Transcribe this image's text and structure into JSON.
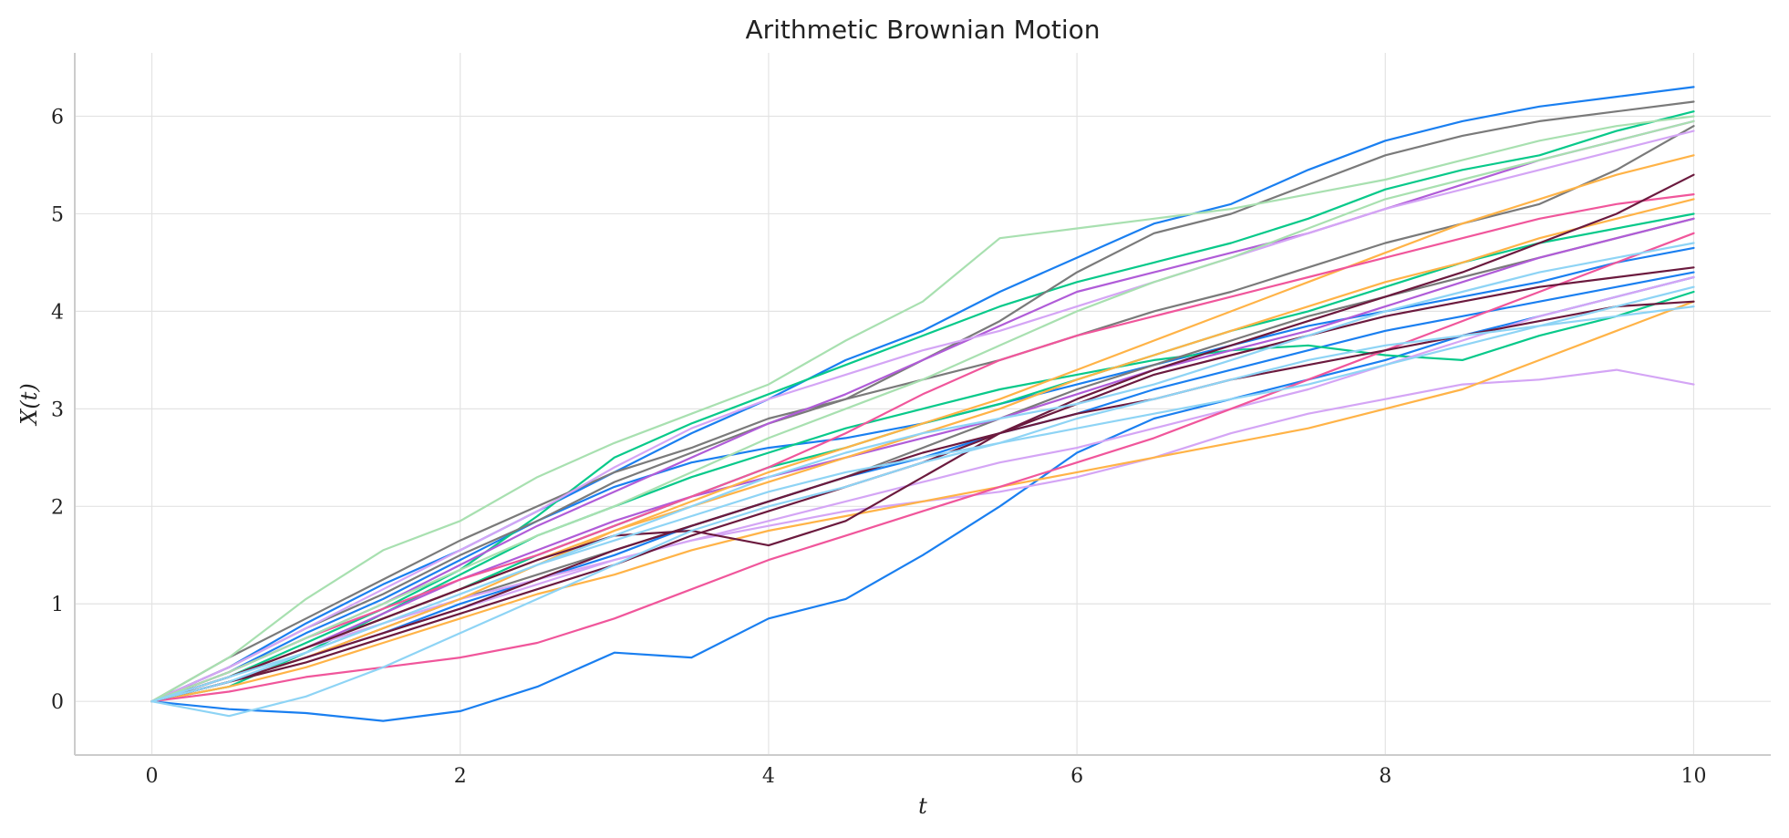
{
  "chart_data": {
    "type": "line",
    "title": "Arithmetic Brownian Motion",
    "xlabel": "t",
    "ylabel": "X(t)",
    "xlim": [
      -0.5,
      10.5
    ],
    "ylim": [
      -0.55,
      6.65
    ],
    "x_ticks": [
      0,
      2,
      4,
      6,
      8,
      10
    ],
    "x_tick_labels": [
      "0",
      "2",
      "4",
      "6",
      "8",
      "10"
    ],
    "y_ticks": [
      0,
      1,
      2,
      3,
      4,
      5,
      6
    ],
    "y_tick_labels": [
      "0",
      "1",
      "2",
      "3",
      "4",
      "5",
      "6"
    ],
    "grid": true,
    "legend": "none",
    "x": [
      0,
      0.5,
      1,
      1.5,
      2,
      2.5,
      3,
      3.5,
      4,
      4.5,
      5,
      5.5,
      6,
      6.5,
      7,
      7.5,
      8,
      8.5,
      9,
      9.5,
      10
    ],
    "series": [
      {
        "color": "#1a7ff0",
        "values": [
          0,
          -0.08,
          -0.12,
          -0.2,
          -0.1,
          0.15,
          0.5,
          0.45,
          0.85,
          1.05,
          1.5,
          2.0,
          2.55,
          2.9,
          3.1,
          3.3,
          3.5,
          3.75,
          3.95,
          4.15,
          4.35
        ]
      },
      {
        "color": "#1a7ff0",
        "values": [
          0,
          0.35,
          0.8,
          1.2,
          1.55,
          1.95,
          2.35,
          2.75,
          3.1,
          3.5,
          3.8,
          4.2,
          4.55,
          4.9,
          5.1,
          5.45,
          5.75,
          5.95,
          6.1,
          6.2,
          6.3
        ]
      },
      {
        "color": "#1a7ff0",
        "values": [
          0,
          0.2,
          0.45,
          0.7,
          1.0,
          1.25,
          1.5,
          1.8,
          2.05,
          2.3,
          2.5,
          2.75,
          2.95,
          3.2,
          3.4,
          3.6,
          3.8,
          3.95,
          4.1,
          4.25,
          4.4
        ]
      },
      {
        "color": "#1a7ff0",
        "values": [
          0,
          0.3,
          0.7,
          1.05,
          1.45,
          1.85,
          2.2,
          2.45,
          2.6,
          2.7,
          2.85,
          3.05,
          3.25,
          3.45,
          3.65,
          3.85,
          4.0,
          4.15,
          4.3,
          4.5,
          4.65
        ]
      },
      {
        "color": "#08c98a",
        "values": [
          0,
          0.25,
          0.6,
          0.95,
          1.35,
          1.9,
          2.5,
          2.85,
          3.15,
          3.45,
          3.75,
          4.05,
          4.3,
          4.5,
          4.7,
          4.95,
          5.25,
          5.45,
          5.6,
          5.85,
          6.05
        ]
      },
      {
        "color": "#08c98a",
        "values": [
          0,
          0.15,
          0.5,
          0.9,
          1.3,
          1.7,
          2.0,
          2.3,
          2.55,
          2.8,
          3.0,
          3.2,
          3.35,
          3.5,
          3.6,
          3.65,
          3.55,
          3.5,
          3.75,
          3.95,
          4.2
        ]
      },
      {
        "color": "#08c98a",
        "values": [
          0,
          0.25,
          0.55,
          0.85,
          1.15,
          1.5,
          1.8,
          2.1,
          2.4,
          2.6,
          2.85,
          3.05,
          3.3,
          3.55,
          3.8,
          4.0,
          4.25,
          4.5,
          4.7,
          4.85,
          5.0
        ]
      },
      {
        "color": "#7a7a7a",
        "values": [
          0,
          0.45,
          0.85,
          1.25,
          1.65,
          2.0,
          2.35,
          2.6,
          2.9,
          3.1,
          3.5,
          3.9,
          4.4,
          4.8,
          5.0,
          5.3,
          5.6,
          5.8,
          5.95,
          6.05,
          6.15
        ]
      },
      {
        "color": "#7a7a7a",
        "values": [
          0,
          0.35,
          0.75,
          1.1,
          1.5,
          1.85,
          2.25,
          2.55,
          2.85,
          3.1,
          3.3,
          3.5,
          3.75,
          4.0,
          4.2,
          4.45,
          4.7,
          4.9,
          5.1,
          5.45,
          5.9
        ]
      },
      {
        "color": "#7a7a7a",
        "values": [
          0,
          0.2,
          0.45,
          0.75,
          1.05,
          1.3,
          1.55,
          1.8,
          2.05,
          2.3,
          2.6,
          2.9,
          3.2,
          3.45,
          3.7,
          3.95,
          4.15,
          4.35,
          4.55,
          4.75,
          4.95
        ]
      },
      {
        "color": "#b05cd8",
        "values": [
          0,
          0.3,
          0.65,
          1.0,
          1.4,
          1.8,
          2.15,
          2.5,
          2.85,
          3.15,
          3.5,
          3.85,
          4.2,
          4.4,
          4.6,
          4.8,
          5.05,
          5.3,
          5.55,
          5.75,
          5.95
        ]
      },
      {
        "color": "#b05cd8",
        "values": [
          0,
          0.25,
          0.55,
          0.9,
          1.25,
          1.55,
          1.85,
          2.1,
          2.3,
          2.5,
          2.7,
          2.9,
          3.15,
          3.4,
          3.6,
          3.8,
          4.05,
          4.3,
          4.55,
          4.75,
          4.95
        ]
      },
      {
        "color": "#d4a5f5",
        "values": [
          0,
          0.25,
          0.55,
          0.8,
          1.05,
          1.25,
          1.45,
          1.65,
          1.8,
          1.95,
          2.05,
          2.15,
          2.3,
          2.5,
          2.75,
          2.95,
          3.1,
          3.25,
          3.3,
          3.4,
          3.25
        ]
      },
      {
        "color": "#d4a5f5",
        "values": [
          0,
          0.35,
          0.75,
          1.15,
          1.55,
          1.95,
          2.4,
          2.8,
          3.1,
          3.35,
          3.6,
          3.8,
          4.05,
          4.3,
          4.55,
          4.8,
          5.05,
          5.25,
          5.45,
          5.65,
          5.85
        ]
      },
      {
        "color": "#d4a5f5",
        "values": [
          0,
          0.2,
          0.45,
          0.7,
          0.95,
          1.2,
          1.45,
          1.65,
          1.85,
          2.05,
          2.25,
          2.45,
          2.6,
          2.8,
          3.0,
          3.2,
          3.45,
          3.7,
          3.95,
          4.15,
          4.35
        ]
      },
      {
        "color": "#ffb347",
        "values": [
          0,
          0.2,
          0.45,
          0.75,
          1.05,
          1.4,
          1.75,
          2.05,
          2.35,
          2.6,
          2.85,
          3.1,
          3.4,
          3.7,
          4.0,
          4.3,
          4.6,
          4.9,
          5.15,
          5.4,
          5.6
        ]
      },
      {
        "color": "#ffb347",
        "values": [
          0,
          0.15,
          0.35,
          0.6,
          0.85,
          1.1,
          1.3,
          1.55,
          1.75,
          1.9,
          2.05,
          2.2,
          2.35,
          2.5,
          2.65,
          2.8,
          3.0,
          3.2,
          3.5,
          3.8,
          4.1
        ]
      },
      {
        "color": "#ffb347",
        "values": [
          0,
          0.25,
          0.55,
          0.85,
          1.15,
          1.45,
          1.75,
          2.0,
          2.25,
          2.5,
          2.75,
          3.0,
          3.3,
          3.55,
          3.8,
          4.05,
          4.3,
          4.5,
          4.75,
          4.95,
          5.15
        ]
      },
      {
        "color": "#f0569b",
        "values": [
          0,
          0.1,
          0.25,
          0.35,
          0.45,
          0.6,
          0.85,
          1.15,
          1.45,
          1.7,
          1.95,
          2.2,
          2.45,
          2.7,
          3.0,
          3.3,
          3.6,
          3.9,
          4.2,
          4.5,
          4.8
        ]
      },
      {
        "color": "#f0569b",
        "values": [
          0,
          0.3,
          0.65,
          0.95,
          1.25,
          1.5,
          1.8,
          2.1,
          2.4,
          2.75,
          3.15,
          3.5,
          3.75,
          3.95,
          4.15,
          4.35,
          4.55,
          4.75,
          4.95,
          5.1,
          5.2
        ]
      },
      {
        "color": "#6b1a3e",
        "values": [
          0,
          0.25,
          0.55,
          0.85,
          1.15,
          1.45,
          1.7,
          1.75,
          1.6,
          1.85,
          2.3,
          2.75,
          3.1,
          3.4,
          3.65,
          3.9,
          4.15,
          4.4,
          4.7,
          5.0,
          5.4
        ]
      },
      {
        "color": "#6b1a3e",
        "values": [
          0,
          0.2,
          0.45,
          0.7,
          0.95,
          1.25,
          1.55,
          1.8,
          2.05,
          2.3,
          2.55,
          2.75,
          2.95,
          3.1,
          3.3,
          3.45,
          3.6,
          3.75,
          3.9,
          4.05,
          4.1
        ]
      },
      {
        "color": "#6b1a3e",
        "values": [
          0,
          0.2,
          0.4,
          0.65,
          0.9,
          1.15,
          1.4,
          1.7,
          1.95,
          2.2,
          2.45,
          2.75,
          3.05,
          3.35,
          3.55,
          3.75,
          3.95,
          4.1,
          4.25,
          4.35,
          4.45
        ]
      },
      {
        "color": "#a8e0b0",
        "values": [
          0,
          0.45,
          1.05,
          1.55,
          1.85,
          2.3,
          2.65,
          2.95,
          3.25,
          3.7,
          4.1,
          4.75,
          4.85,
          4.95,
          5.05,
          5.2,
          5.35,
          5.55,
          5.75,
          5.9,
          6.0
        ]
      },
      {
        "color": "#a8e0b0",
        "values": [
          0,
          0.3,
          0.65,
          1.0,
          1.35,
          1.7,
          2.0,
          2.35,
          2.7,
          3.0,
          3.3,
          3.65,
          4.0,
          4.3,
          4.55,
          4.85,
          5.15,
          5.35,
          5.55,
          5.75,
          5.95
        ]
      },
      {
        "color": "#8ed4f5",
        "values": [
          0,
          -0.15,
          0.05,
          0.35,
          0.7,
          1.05,
          1.4,
          1.75,
          2.0,
          2.2,
          2.45,
          2.65,
          2.9,
          3.1,
          3.3,
          3.5,
          3.65,
          3.75,
          3.85,
          3.95,
          4.05
        ]
      },
      {
        "color": "#8ed4f5",
        "values": [
          0,
          0.25,
          0.5,
          0.8,
          1.1,
          1.4,
          1.7,
          2.0,
          2.3,
          2.55,
          2.75,
          2.9,
          3.05,
          3.25,
          3.5,
          3.75,
          4.0,
          4.2,
          4.4,
          4.55,
          4.7
        ]
      },
      {
        "color": "#8ed4f5",
        "values": [
          0,
          0.2,
          0.5,
          0.8,
          1.1,
          1.4,
          1.65,
          1.9,
          2.15,
          2.35,
          2.5,
          2.65,
          2.8,
          2.95,
          3.1,
          3.25,
          3.45,
          3.65,
          3.85,
          4.05,
          4.25
        ]
      }
    ]
  }
}
